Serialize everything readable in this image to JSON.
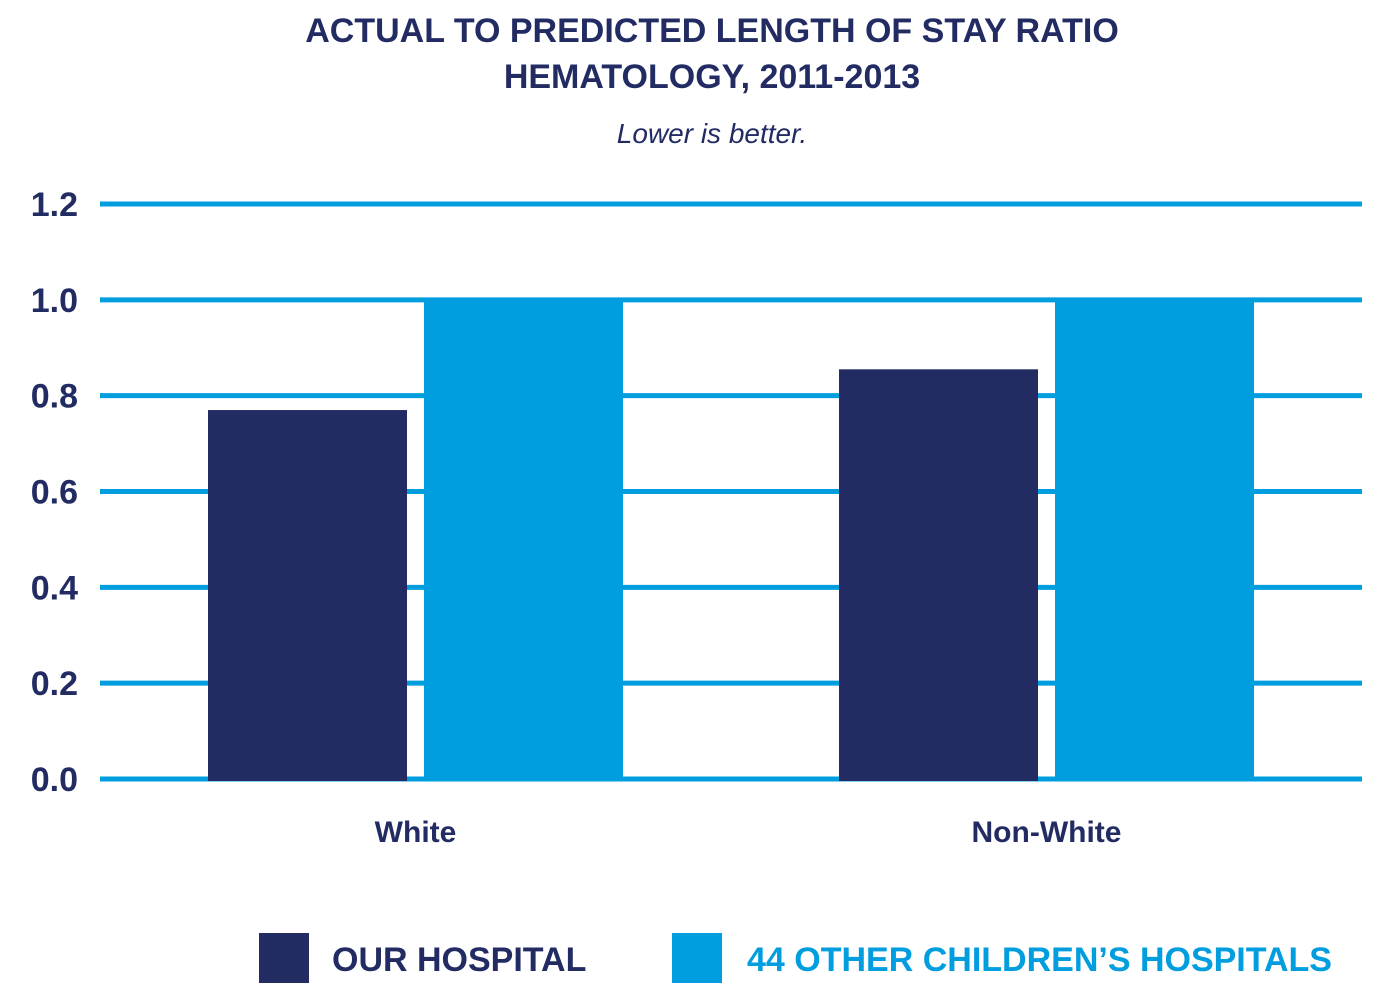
{
  "chart_data": {
    "type": "bar",
    "title_lines": [
      "ACTUAL TO PREDICTED LENGTH OF STAY RATIO",
      "HEMATOLOGY, 2011-2013"
    ],
    "subtitle": "Lower is better.",
    "categories": [
      "White",
      "Non-White"
    ],
    "series": [
      {
        "name": "OUR HOSPITAL",
        "values": [
          0.77,
          0.855
        ],
        "color": "#222c63"
      },
      {
        "name": "44 OTHER CHILDREN’S HOSPITALS",
        "values": [
          1.0,
          1.0
        ],
        "color": "#009ddf"
      }
    ],
    "ylim": [
      0,
      1.2
    ],
    "yticks": [
      0.0,
      0.2,
      0.4,
      0.6,
      0.8,
      1.0,
      1.2
    ],
    "ytick_labels": [
      "0.0",
      "0.2",
      "0.4",
      "0.6",
      "0.8",
      "1.0",
      "1.2"
    ],
    "grid": true,
    "grid_color": "#009ddf",
    "legend_position": "bottom",
    "xlabel": "",
    "ylabel": ""
  }
}
